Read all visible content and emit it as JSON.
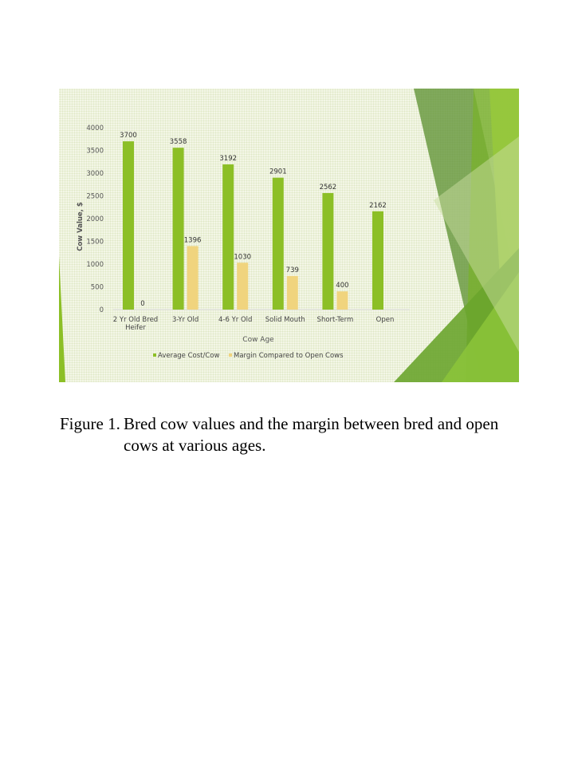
{
  "chart_data": {
    "type": "bar",
    "categories": [
      "2 Yr Old Bred Heifer",
      "3-Yr Old",
      "4-6 Yr Old",
      "Solid Mouth",
      "Short-Term",
      "Open"
    ],
    "category_lines": [
      [
        "2 Yr Old Bred",
        "Heifer"
      ],
      [
        "3-Yr Old"
      ],
      [
        "4-6 Yr Old"
      ],
      [
        "Solid Mouth"
      ],
      [
        "Short-Term"
      ],
      [
        "Open"
      ]
    ],
    "series": [
      {
        "name": "Average Cost/Cow",
        "values": [
          3700,
          3558,
          3192,
          2901,
          2562,
          2162
        ],
        "color": "#8cbf26"
      },
      {
        "name": "Margin Compared to Open Cows",
        "values": [
          0,
          1396,
          1030,
          739,
          400,
          null
        ],
        "color": "#f0d47e"
      }
    ],
    "xlabel": "Cow Age",
    "ylabel": "Cow Value, $",
    "ylim": [
      0,
      4000
    ],
    "yticks": [
      0,
      500,
      1000,
      1500,
      2000,
      2500,
      3000,
      3500,
      4000
    ],
    "grid": false,
    "legend": "bottom",
    "data_labels": true
  },
  "caption": {
    "label": "Figure 1.",
    "line1": "Bred cow values and the margin between bred and open",
    "line2": "cows at various ages."
  }
}
